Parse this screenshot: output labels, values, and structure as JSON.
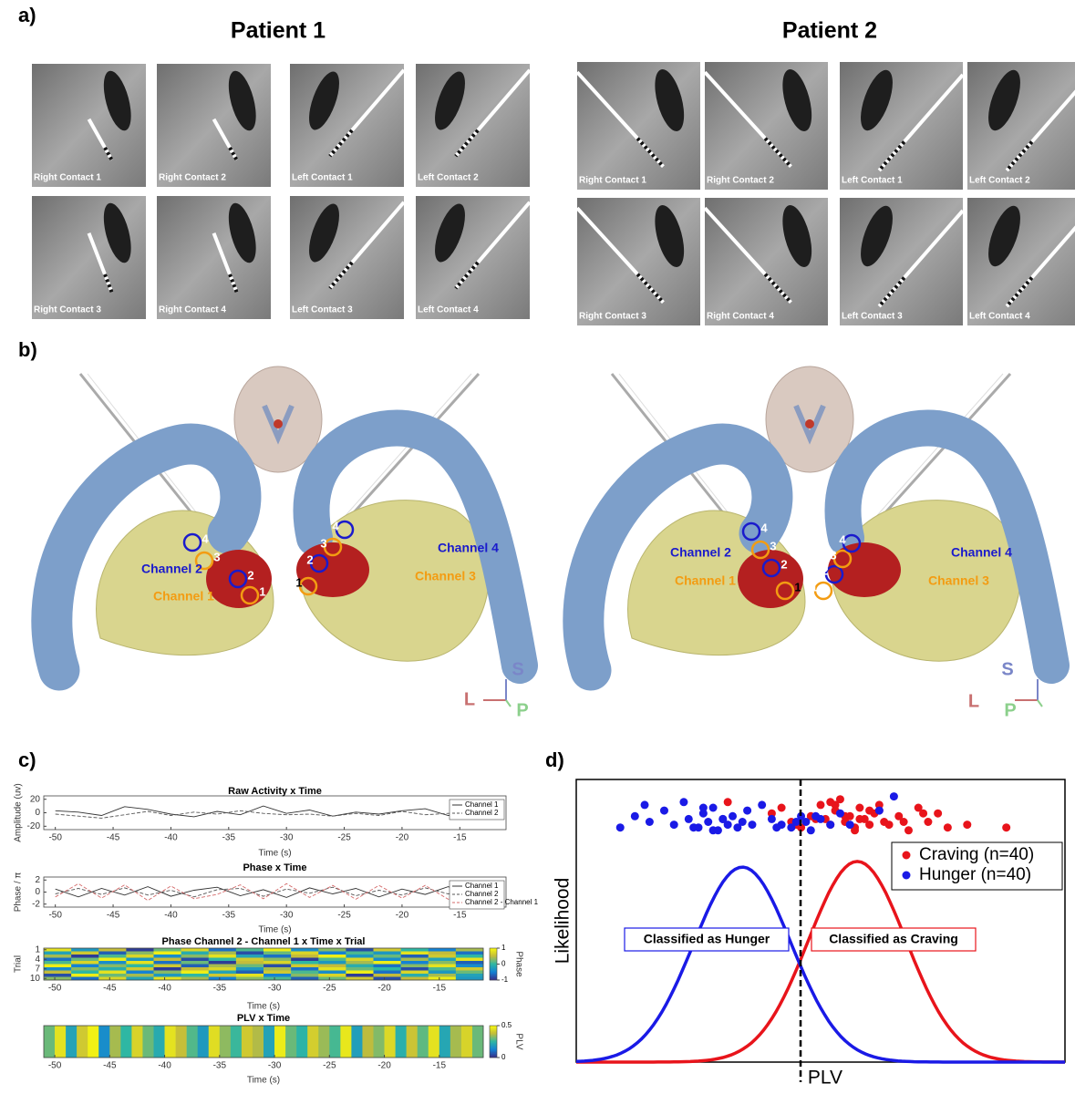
{
  "panel_labels": [
    "a)",
    "b)",
    "c)",
    "d)"
  ],
  "panel_a": {
    "patients": [
      {
        "title": "Patient 1",
        "images": [
          "Right Contact 1",
          "Right Contact 2",
          "Left Contact 1",
          "Left Contact 2",
          "Right Contact 3",
          "Right Contact 4",
          "Left Contact 3",
          "Left Contact 4"
        ]
      },
      {
        "title": "Patient 2",
        "images": [
          "Right Contact 1",
          "Right Contact 2",
          "Left Contact 1",
          "Left Contact 2",
          "Right Contact 3",
          "Right Contact 4",
          "Left Contact 3",
          "Left Contact 4"
        ]
      }
    ]
  },
  "panel_b": {
    "channels": [
      "Channel 1",
      "Channel 2",
      "Channel 3",
      "Channel 4"
    ],
    "contacts": [
      "1",
      "2",
      "3",
      "4"
    ],
    "orientation": [
      "S",
      "L",
      "P"
    ]
  },
  "chart_data": [
    {
      "type": "line",
      "title": "Raw Activity x Time",
      "xlabel": "Time (s)",
      "ylabel": "Amplitude (uv)",
      "x": [
        -50,
        -48,
        -46,
        -44,
        -42,
        -40,
        -38,
        -36,
        -34,
        -32,
        -30,
        -28,
        -26,
        -24,
        -22,
        -20,
        -18,
        -16,
        -14,
        -12
      ],
      "series": [
        {
          "name": "Channel 1",
          "color": "#333333",
          "style": "solid",
          "values": [
            3,
            1,
            -4,
            9,
            5,
            -2,
            -6,
            2,
            -3,
            10,
            -1,
            4,
            -5,
            1,
            -2,
            3,
            6,
            -4,
            2,
            8
          ]
        },
        {
          "name": "Channel 2",
          "color": "#555555",
          "style": "dashed",
          "values": [
            -2,
            -5,
            -8,
            -3,
            2,
            -4,
            1,
            -2,
            3,
            -1,
            -3,
            -2,
            -5,
            -1,
            -4,
            2,
            -3,
            -1,
            0,
            -2
          ]
        }
      ],
      "xlim": [
        -51,
        -11
      ],
      "ylim": [
        -25,
        25
      ],
      "xticks": [
        -50,
        -45,
        -40,
        -35,
        -30,
        -25,
        -20,
        -15
      ],
      "yticks": [
        20,
        0,
        -20
      ]
    },
    {
      "type": "line",
      "title": "Phase x Time",
      "xlabel": "Time (s)",
      "ylabel": "Phase / π",
      "x": [
        -50,
        -48,
        -46,
        -44,
        -42,
        -40,
        -38,
        -36,
        -34,
        -32,
        -30,
        -28,
        -26,
        -24,
        -22,
        -20,
        -18,
        -16,
        -14,
        -12
      ],
      "series": [
        {
          "name": "Channel 1",
          "color": "#333333",
          "style": "solid",
          "values": [
            0.5,
            -0.8,
            0.6,
            -0.5,
            0.9,
            -0.7,
            0.3,
            0.8,
            -0.6,
            0.4,
            -0.9,
            0.7,
            -0.3,
            0.6,
            -0.8,
            0.5,
            -0.4,
            0.9,
            -0.6,
            0.2
          ]
        },
        {
          "name": "Channel 2",
          "color": "#555555",
          "style": "dashed",
          "values": [
            -0.3,
            0.6,
            -0.4,
            0.7,
            -0.5,
            0.3,
            -0.8,
            0.4,
            0.6,
            -0.7,
            0.5,
            -0.2,
            0.8,
            -0.6,
            0.3,
            -0.5,
            0.7,
            -0.3,
            0.4,
            -0.8
          ]
        },
        {
          "name": "Channel 2 - Channel 1",
          "color": "#d46a6a",
          "style": "dashed",
          "values": [
            -0.8,
            1.4,
            -1.0,
            1.2,
            -1.4,
            1.0,
            -1.1,
            -0.4,
            1.2,
            -1.1,
            1.4,
            -0.9,
            1.1,
            -1.2,
            1.1,
            -1.0,
            1.1,
            -1.2,
            1.0,
            -1.0
          ]
        }
      ],
      "xlim": [
        -51,
        -11
      ],
      "ylim": [
        -2.5,
        2.5
      ],
      "xticks": [
        -50,
        -45,
        -40,
        -35,
        -30,
        -25,
        -20,
        -15
      ],
      "yticks": [
        2,
        0,
        -2
      ]
    },
    {
      "type": "heatmap",
      "title": "Phase Channel 2 - Channel 1 x Time x Trial",
      "xlabel": "Time (s)",
      "ylabel": "Trial",
      "colorbar_label": "Phase",
      "values": [
        [
          0.8,
          -0.3,
          0.5,
          -0.9,
          0.2,
          0.7,
          -0.6,
          0.1,
          0.9,
          -0.4,
          0.3,
          -0.8,
          0.6,
          0.0,
          -0.5,
          0.4
        ],
        [
          -0.2,
          0.6,
          -0.7,
          0.3,
          0.9,
          -0.1,
          0.4,
          -0.8,
          0.2,
          0.7,
          -0.5,
          0.1,
          -0.3,
          0.8,
          0.5,
          -0.6
        ],
        [
          0.4,
          -0.9,
          0.1,
          0.7,
          -0.4,
          0.3,
          0.8,
          -0.2,
          -0.6,
          0.5,
          0.9,
          -0.3,
          0.2,
          -0.7,
          0.6,
          0.0
        ],
        [
          -0.6,
          0.2,
          0.9,
          -0.3,
          0.5,
          -0.8,
          0.0,
          0.6,
          0.3,
          -0.9,
          0.1,
          0.7,
          -0.4,
          0.4,
          -0.2,
          0.8
        ],
        [
          0.1,
          0.7,
          -0.4,
          0.8,
          -0.6,
          0.2,
          -0.9,
          0.5,
          0.7,
          0.0,
          -0.3,
          0.4,
          0.9,
          -0.5,
          0.3,
          -0.7
        ],
        [
          0.9,
          -0.5,
          0.3,
          0.0,
          0.6,
          -0.7,
          0.4,
          0.2,
          -0.8,
          0.6,
          0.5,
          -0.1,
          -0.6,
          0.3,
          0.8,
          -0.4
        ],
        [
          -0.4,
          0.3,
          -0.1,
          0.6,
          -0.9,
          0.5,
          0.7,
          -0.3,
          0.4,
          -0.6,
          0.8,
          0.2,
          0.0,
          -0.8,
          0.1,
          0.6
        ],
        [
          0.5,
          0.0,
          0.8,
          -0.5,
          0.3,
          0.9,
          -0.2,
          -0.7,
          0.6,
          0.1,
          -0.4,
          0.9,
          -0.6,
          0.7,
          -0.3,
          0.2
        ],
        [
          -0.8,
          0.9,
          0.2,
          0.4,
          -0.3,
          0.0,
          0.6,
          0.8,
          -0.5,
          0.3,
          0.7,
          -0.9,
          0.5,
          -0.1,
          0.4,
          -0.2
        ],
        [
          0.3,
          -0.6,
          0.7,
          -0.2,
          0.8,
          0.4,
          -0.5,
          0.3,
          0.1,
          -0.7,
          0.2,
          0.6,
          -0.8,
          0.5,
          0.9,
          -0.3
        ]
      ],
      "xlim": [
        -51,
        -11
      ],
      "ylim": [
        0.5,
        10.5
      ],
      "yreverse": true,
      "xticks": [
        -50,
        -45,
        -40,
        -35,
        -30,
        -25,
        -20,
        -15
      ],
      "yticks": [
        1,
        4,
        7,
        10
      ],
      "clim": [
        -1,
        1
      ],
      "cticks": [
        1,
        0,
        -1
      ]
    },
    {
      "type": "heatmap",
      "title": "PLV x Time",
      "xlabel": "Time (s)",
      "colorbar_label": "PLV",
      "values": [
        0.3,
        0.45,
        0.2,
        0.4,
        0.48,
        0.15,
        0.35,
        0.25,
        0.42,
        0.3,
        0.22,
        0.45,
        0.38,
        0.28,
        0.18,
        0.44,
        0.33,
        0.26,
        0.4,
        0.36,
        0.2,
        0.47,
        0.3,
        0.24,
        0.41,
        0.34,
        0.27,
        0.46,
        0.19,
        0.37,
        0.32,
        0.43,
        0.23,
        0.39,
        0.29,
        0.45,
        0.21,
        0.35,
        0.42,
        0.3
      ],
      "xlim": [
        -51,
        -11
      ],
      "xticks": [
        -50,
        -45,
        -40,
        -35,
        -30,
        -25,
        -20,
        -15
      ],
      "clim": [
        0,
        0.5
      ],
      "cticks": [
        0.5,
        0
      ]
    },
    {
      "type": "scatter",
      "xlabel": "PLV",
      "ylabel": "Likelihood",
      "xlim": [
        0,
        1
      ],
      "ylim": [
        0,
        1
      ],
      "threshold": 0.459,
      "annotations": [
        "Classified as Hunger",
        "Classified as Craving"
      ],
      "series": [
        {
          "name": "Craving (n=40)",
          "color": "#e8141b",
          "x": [
            0.31,
            0.4,
            0.44,
            0.42,
            0.46,
            0.48,
            0.5,
            0.51,
            0.52,
            0.53,
            0.54,
            0.55,
            0.56,
            0.57,
            0.58,
            0.59,
            0.6,
            0.61,
            0.62,
            0.63,
            0.55,
            0.57,
            0.52,
            0.49,
            0.6,
            0.64,
            0.66,
            0.68,
            0.7,
            0.72,
            0.74,
            0.76,
            0.58,
            0.62,
            0.45,
            0.53,
            0.67,
            0.71,
            0.8,
            0.88
          ],
          "values": [
            0.92,
            0.88,
            0.85,
            0.9,
            0.83,
            0.87,
            0.91,
            0.86,
            0.84,
            0.89,
            0.93,
            0.85,
            0.87,
            0.82,
            0.9,
            0.86,
            0.84,
            0.88,
            0.91,
            0.85,
            0.87,
            0.83,
            0.92,
            0.86,
            0.89,
            0.84,
            0.87,
            0.82,
            0.9,
            0.85,
            0.88,
            0.83,
            0.86,
            0.89,
            0.84,
            0.91,
            0.85,
            0.88,
            0.84,
            0.83
          ],
          "curve": {
            "mean": 0.575,
            "sd": 0.1,
            "peak": 0.71
          }
        },
        {
          "name": "Hunger (n=40)",
          "color": "#1a1ae6",
          "x": [
            0.09,
            0.12,
            0.14,
            0.15,
            0.18,
            0.2,
            0.22,
            0.23,
            0.25,
            0.26,
            0.27,
            0.28,
            0.29,
            0.3,
            0.31,
            0.32,
            0.33,
            0.34,
            0.35,
            0.36,
            0.28,
            0.3,
            0.26,
            0.24,
            0.38,
            0.4,
            0.42,
            0.44,
            0.46,
            0.47,
            0.48,
            0.5,
            0.52,
            0.54,
            0.41,
            0.45,
            0.49,
            0.56,
            0.62,
            0.65
          ],
          "values": [
            0.83,
            0.87,
            0.91,
            0.85,
            0.89,
            0.84,
            0.92,
            0.86,
            0.83,
            0.88,
            0.85,
            0.9,
            0.82,
            0.86,
            0.84,
            0.87,
            0.83,
            0.85,
            0.89,
            0.84,
            0.82,
            0.86,
            0.9,
            0.83,
            0.91,
            0.86,
            0.84,
            0.83,
            0.87,
            0.85,
            0.82,
            0.86,
            0.84,
            0.88,
            0.83,
            0.85,
            0.87,
            0.84,
            0.89,
            0.94
          ],
          "curve": {
            "mean": 0.34,
            "sd": 0.1,
            "peak": 0.69
          }
        }
      ]
    }
  ]
}
